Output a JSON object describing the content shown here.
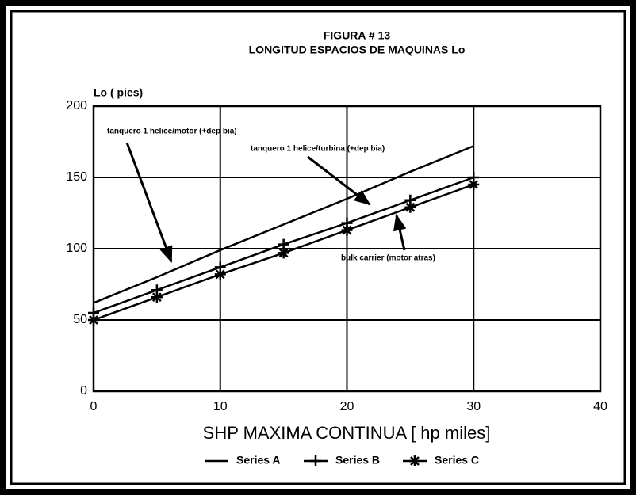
{
  "chart_data": {
    "type": "line",
    "title": "FIGURA # 13",
    "subtitle": "LONGITUD ESPACIOS DE MAQUINAS Lo",
    "y_label": "Lo ( pies)",
    "x_label": "SHP MAXIMA CONTINUA [ hp miles]",
    "x": [
      0,
      5,
      10,
      15,
      20,
      25,
      30
    ],
    "series": [
      {
        "name": "Series A",
        "color": "#000000",
        "marker": "none",
        "values": [
          62,
          80,
          99,
          117,
          135,
          154,
          172
        ]
      },
      {
        "name": "Series B",
        "color": "#000000",
        "marker": "plus",
        "values": [
          55,
          71,
          87,
          103,
          118,
          134,
          150
        ]
      },
      {
        "name": "Series C",
        "color": "#000000",
        "marker": "asterisk",
        "values": [
          50,
          66,
          82,
          97,
          113,
          129,
          145
        ]
      }
    ],
    "annotations": [
      "tanquero 1 helice/motor (+dep bia)",
      "tanquero 1 helice/turbina (+dep bia)",
      "bulk carrier (motor atras)"
    ],
    "xlim": [
      0,
      40
    ],
    "xticks": [
      0,
      10,
      20,
      30,
      40
    ],
    "ylim": [
      0,
      200
    ],
    "yticks": [
      0,
      50,
      100,
      150,
      200
    ],
    "grid": true,
    "legend": "bottom"
  }
}
